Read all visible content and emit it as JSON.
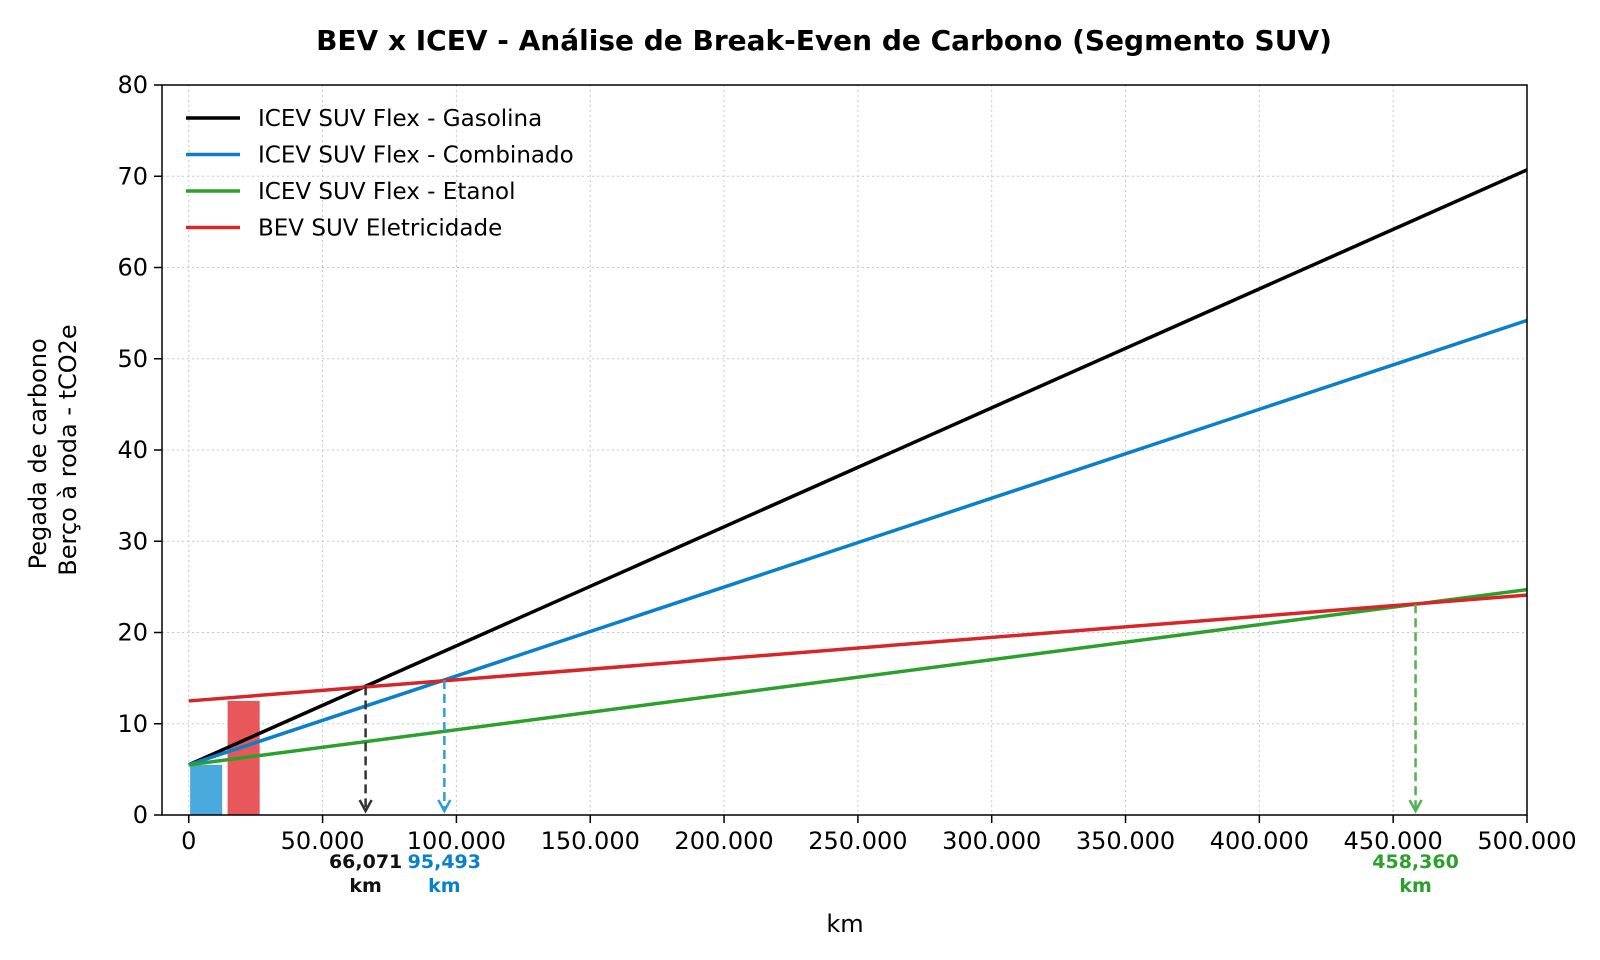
{
  "chart_data": {
    "type": "line",
    "title": "BEV x ICEV - Análise de Break-Even de Carbono (Segmento SUV)",
    "xlabel": "km",
    "ylabel_lines": [
      "Pegada de carbono",
      "Berço à roda - tCO2e"
    ],
    "xlim": [
      -10000,
      500000
    ],
    "ylim": [
      0,
      80
    ],
    "x_ticks": [
      0,
      50000,
      100000,
      150000,
      200000,
      250000,
      300000,
      350000,
      400000,
      450000,
      500000
    ],
    "x_tick_labels": [
      "0",
      "50.000",
      "100.000",
      "150.000",
      "200.000",
      "250.000",
      "300.000",
      "350.000",
      "400.000",
      "450.000",
      "500.000"
    ],
    "y_ticks": [
      0,
      10,
      20,
      30,
      40,
      50,
      60,
      70,
      80
    ],
    "y_tick_labels": [
      "0",
      "10",
      "20",
      "30",
      "40",
      "50",
      "60",
      "70",
      "80"
    ],
    "grid": true,
    "legend_position": "top-left",
    "series": [
      {
        "name": "ICEV SUV Flex - Gasolina",
        "color": "#000000",
        "x": [
          0,
          500000
        ],
        "y": [
          5.5,
          70.7
        ]
      },
      {
        "name": "ICEV SUV Flex - Combinado",
        "color": "#0a7fcb",
        "x": [
          0,
          500000
        ],
        "y": [
          5.5,
          54.2
        ]
      },
      {
        "name": "ICEV SUV Flex - Etanol",
        "color": "#2ca02c",
        "x": [
          0,
          500000
        ],
        "y": [
          5.5,
          24.7
        ]
      },
      {
        "name": "BEV SUV Eletricidade",
        "color": "#d62728",
        "x": [
          0,
          500000
        ],
        "y": [
          12.5,
          24.1
        ]
      }
    ],
    "bars": [
      {
        "x": 6500,
        "width": 12000,
        "value": 5.5,
        "color": "#4aa9dd"
      },
      {
        "x": 20500,
        "width": 12000,
        "value": 12.5,
        "color": "#e8585a"
      }
    ],
    "break_even": [
      {
        "x": 66071,
        "y": 14.1,
        "color": "#333333",
        "label_color": "#111111",
        "label": "66,071",
        "unit": "km"
      },
      {
        "x": 95493,
        "y": 14.8,
        "color": "#2f9ed8",
        "label_color": "#0a7fcb",
        "label": "95,493",
        "unit": "km"
      },
      {
        "x": 458360,
        "y": 23.1,
        "color": "#52b152",
        "label_color": "#2ca02c",
        "label": "458,360",
        "unit": "km"
      }
    ]
  }
}
